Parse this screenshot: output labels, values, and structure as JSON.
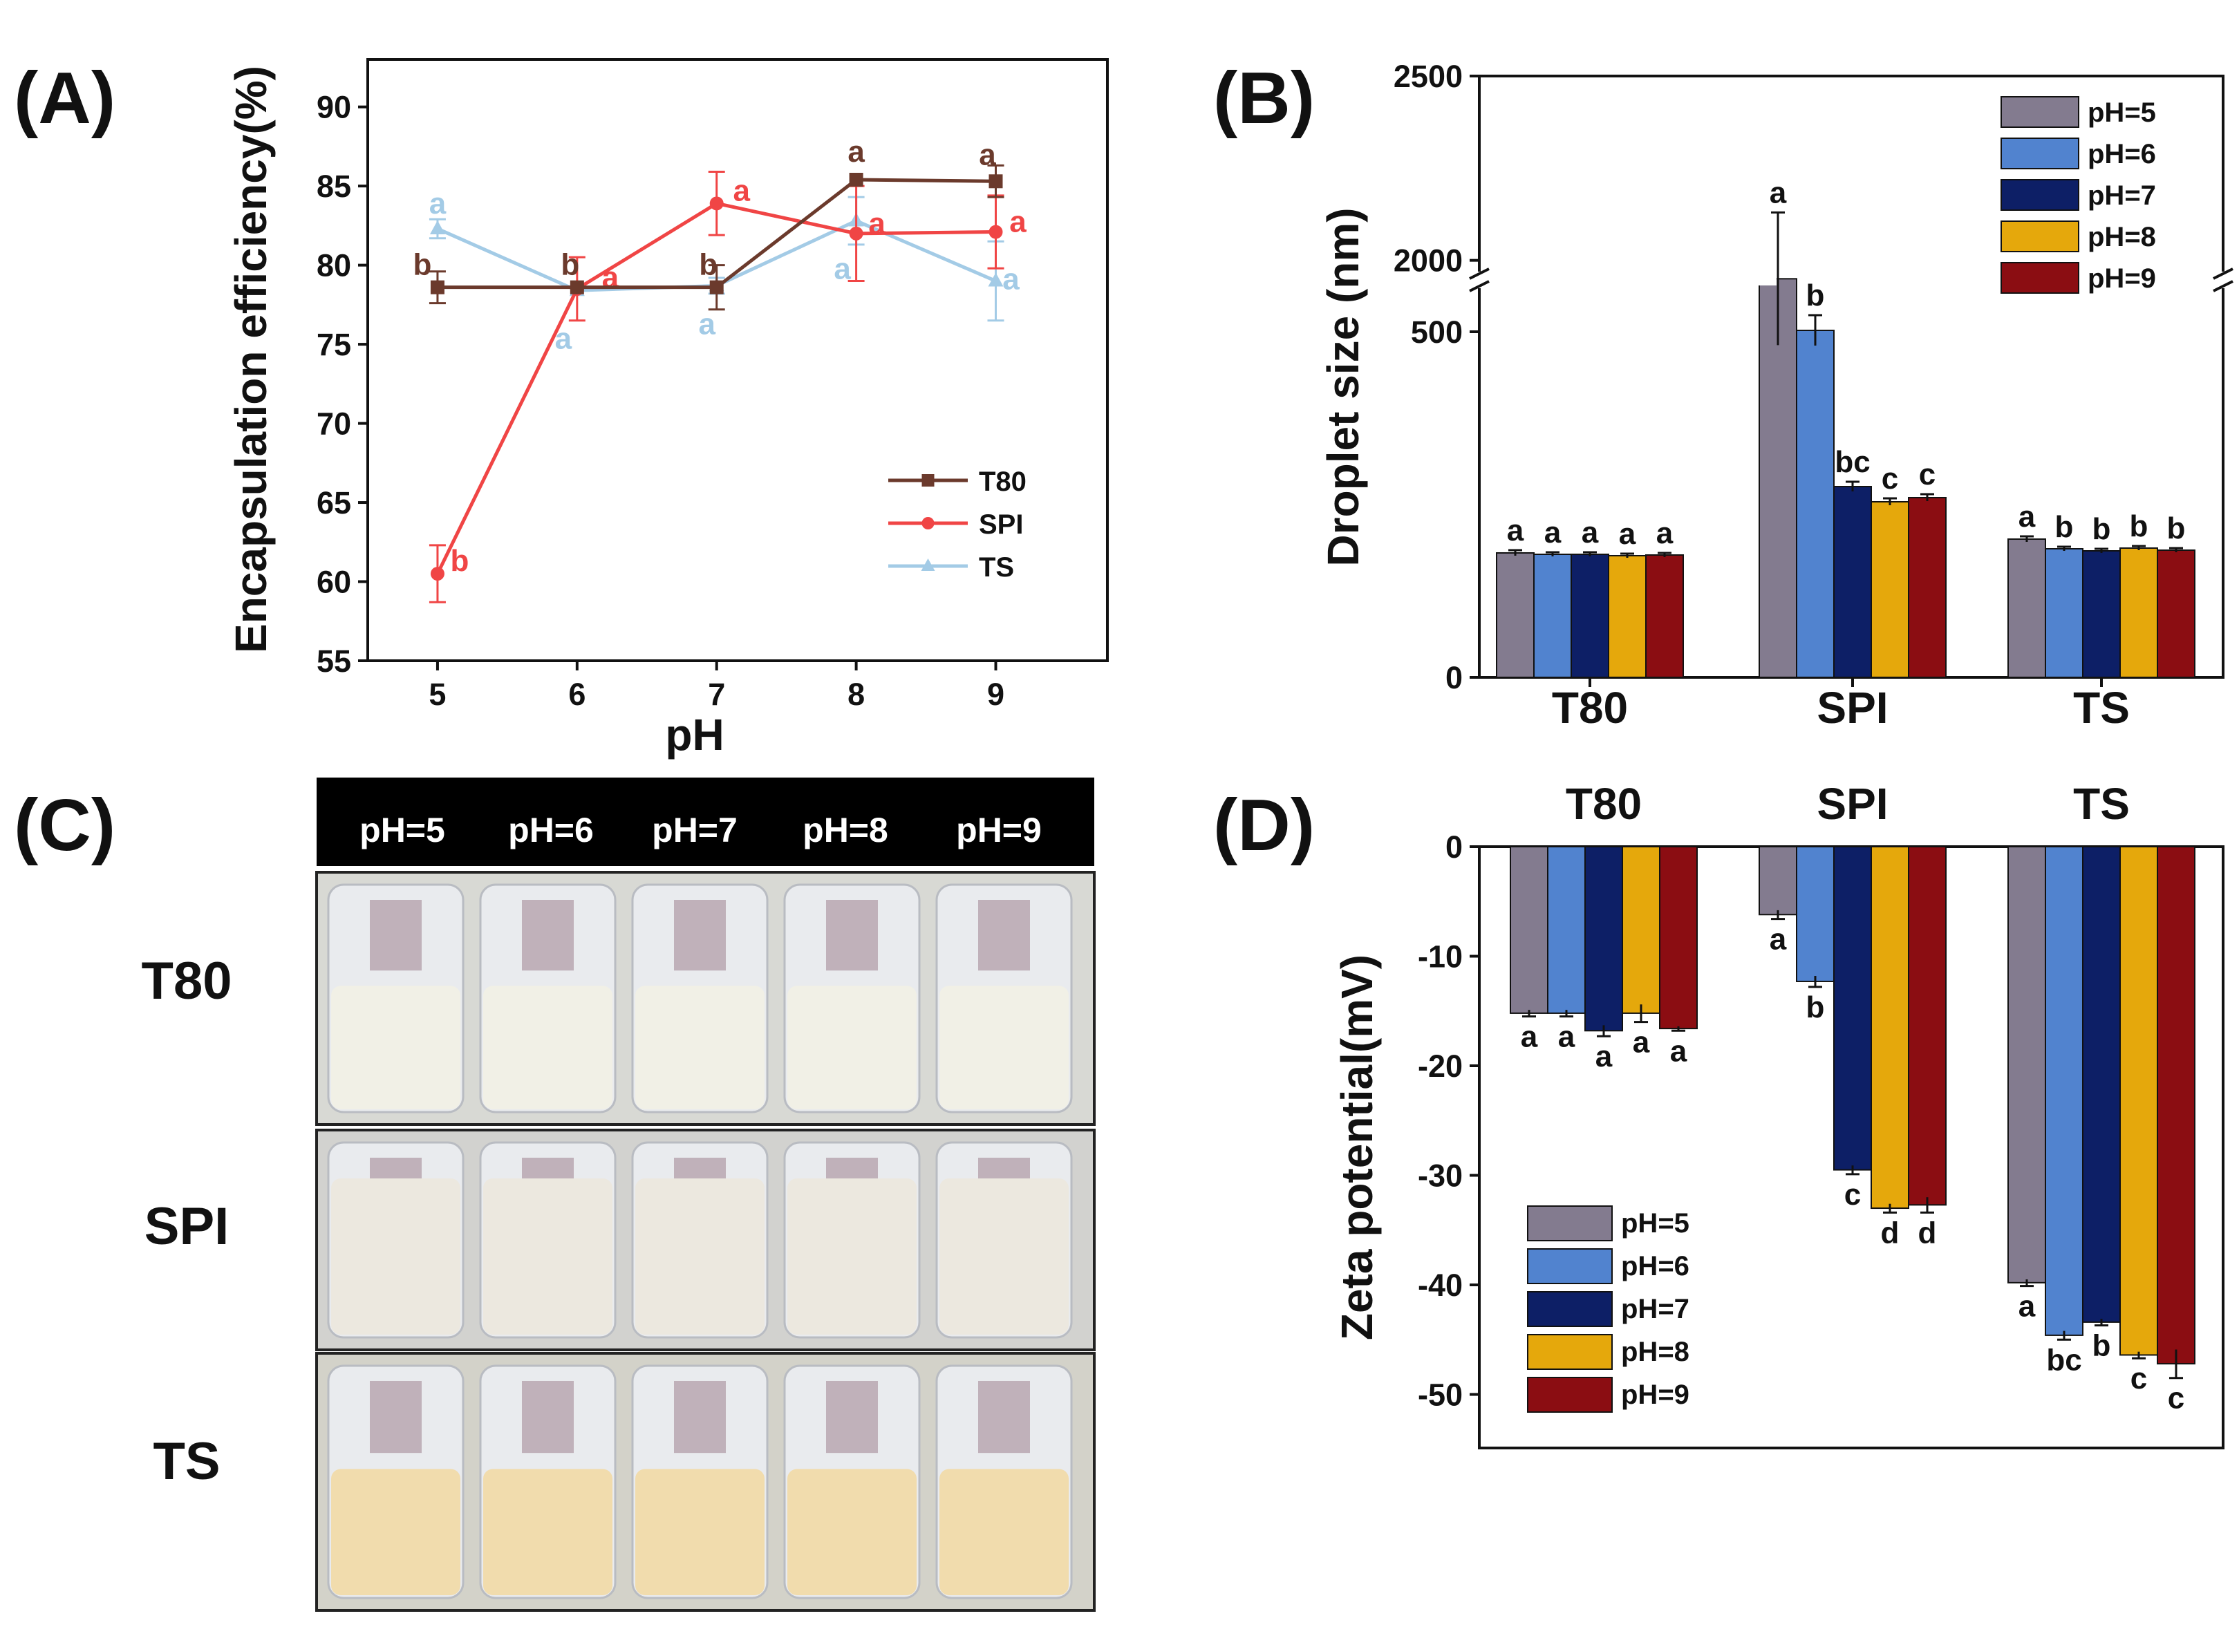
{
  "panels": {
    "a": "(A)",
    "b": "(B)",
    "c": "(C)",
    "d": "(D)"
  },
  "colors": {
    "T80": "#6b3a2c",
    "SPI": "#f04545",
    "TS": "#a3cbe6",
    "pH5": "#837b8f",
    "pH6": "#5183cf",
    "pH7": "#0d1f66",
    "pH8": "#e5a80c",
    "pH9": "#8b0d12"
  },
  "chart_data": [
    {
      "type": "line",
      "panel": "A",
      "xlabel": "pH",
      "ylabel": "Encapsulation efficiency(%)",
      "x": [
        5,
        6,
        7,
        8,
        9
      ],
      "xlim": [
        4.5,
        9.8
      ],
      "ylim": [
        55,
        93
      ],
      "yticks": [
        55,
        60,
        65,
        70,
        75,
        80,
        85,
        90
      ],
      "legend_position": "center-right",
      "series": [
        {
          "name": "T80",
          "marker": "square",
          "color": "#6b3a2c",
          "values": [
            78.6,
            78.6,
            78.6,
            85.4,
            85.3
          ],
          "errors": [
            1.0,
            0,
            1.4,
            0,
            1.0
          ],
          "labels": [
            "b",
            "b",
            "b",
            "a",
            "a"
          ]
        },
        {
          "name": "SPI",
          "marker": "circle",
          "color": "#f04545",
          "values": [
            60.5,
            78.5,
            83.9,
            82.0,
            82.1
          ],
          "errors": [
            1.8,
            2.0,
            2.0,
            3.0,
            2.3
          ],
          "labels": [
            "b",
            "a",
            "a",
            "a",
            "a"
          ]
        },
        {
          "name": "TS",
          "marker": "triangle",
          "color": "#a3cbe6",
          "values": [
            82.3,
            78.4,
            78.7,
            82.8,
            79.0
          ],
          "errors": [
            0.6,
            0,
            0.5,
            1.5,
            2.5
          ],
          "labels": [
            "a",
            "a",
            "a",
            "a",
            "a"
          ]
        }
      ]
    },
    {
      "type": "bar",
      "panel": "B",
      "ylabel": "Droplet size (nm)",
      "categories": [
        "T80",
        "SPI",
        "TS"
      ],
      "ylim": [
        0,
        2500
      ],
      "axis_break": {
        "lower": [
          0,
          600
        ],
        "upper": [
          1900,
          2500
        ]
      },
      "yticks": [
        0,
        500,
        2000,
        2500
      ],
      "legend_position": "top-right",
      "series": [
        {
          "name": "pH=5",
          "color": "#837b8f",
          "values": [
            180,
            1950,
            200
          ],
          "errors": [
            4,
            180,
            4
          ],
          "labels": [
            "a",
            "a",
            "a"
          ]
        },
        {
          "name": "pH=6",
          "color": "#5183cf",
          "values": [
            178,
            502,
            186
          ],
          "errors": [
            3,
            22,
            3
          ],
          "labels": [
            "a",
            "b",
            "b"
          ]
        },
        {
          "name": "pH=7",
          "color": "#0d1f66",
          "values": [
            178,
            276,
            183
          ],
          "errors": [
            3,
            7,
            3
          ],
          "labels": [
            "a",
            "bc",
            "b"
          ]
        },
        {
          "name": "pH=8",
          "color": "#e5a80c",
          "values": [
            176,
            254,
            187
          ],
          "errors": [
            3,
            5,
            3
          ],
          "labels": [
            "a",
            "c",
            "b"
          ]
        },
        {
          "name": "pH=9",
          "color": "#8b0d12",
          "values": [
            177,
            260,
            184
          ],
          "errors": [
            3,
            5,
            3
          ],
          "labels": [
            "a",
            "c",
            "b"
          ]
        }
      ]
    },
    {
      "type": "bar",
      "panel": "D",
      "ylabel": "Zeta potential(mV)",
      "categories": [
        "T80",
        "SPI",
        "TS"
      ],
      "ylim": [
        -55,
        0
      ],
      "yticks": [
        0,
        -10,
        -20,
        -30,
        -40,
        -50
      ],
      "legend_position": "bottom-left",
      "series": [
        {
          "name": "pH=5",
          "color": "#837b8f",
          "values": [
            -15.2,
            -6.2,
            -39.8
          ],
          "errors": [
            0.3,
            0.4,
            0.3
          ],
          "labels": [
            "a",
            "a",
            "a"
          ]
        },
        {
          "name": "pH=6",
          "color": "#5183cf",
          "values": [
            -15.2,
            -12.3,
            -44.6
          ],
          "errors": [
            0.3,
            0.5,
            0.4
          ],
          "labels": [
            "a",
            "b",
            "bc"
          ]
        },
        {
          "name": "pH=7",
          "color": "#0d1f66",
          "values": [
            -16.8,
            -29.5,
            -43.4
          ],
          "errors": [
            0.5,
            0.4,
            0.3
          ],
          "labels": [
            "a",
            "c",
            "b"
          ]
        },
        {
          "name": "pH=8",
          "color": "#e5a80c",
          "values": [
            -15.2,
            -33.0,
            -46.4
          ],
          "errors": [
            0.8,
            0.4,
            0.3
          ],
          "labels": [
            "a",
            "d",
            "c"
          ]
        },
        {
          "name": "pH=9",
          "color": "#8b0d12",
          "values": [
            -16.6,
            -32.7,
            -47.2
          ],
          "errors": [
            0.2,
            0.7,
            1.3
          ],
          "labels": [
            "a",
            "d",
            "c"
          ]
        }
      ]
    }
  ],
  "photo_panel": {
    "header": [
      "pH=5",
      "pH=6",
      "pH=7",
      "pH=8",
      "pH=9"
    ],
    "rows": [
      {
        "label": "T80",
        "liquid": "#f1f0e6",
        "bg": "#d8d9d4"
      },
      {
        "label": "SPI",
        "liquid": "#ece8df",
        "bg": "#d2d2cf"
      },
      {
        "label": "TS",
        "liquid": "#f1dcad",
        "bg": "#d3d2c9"
      }
    ]
  }
}
